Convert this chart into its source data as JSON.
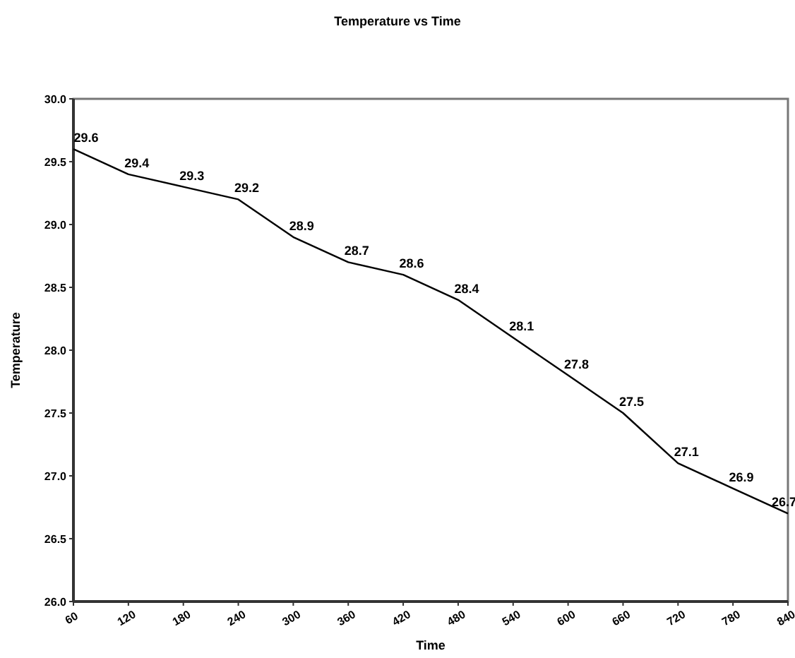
{
  "chart_data": {
    "type": "line",
    "title": "Temperature vs Time",
    "xlabel": "Time",
    "ylabel": "Temperature",
    "x": [
      60,
      120,
      180,
      240,
      300,
      360,
      420,
      480,
      540,
      600,
      660,
      720,
      780,
      840
    ],
    "series": [
      {
        "color": "#000000",
        "values": [
          29.6,
          29.4,
          29.3,
          29.2,
          28.9,
          28.7,
          28.6,
          28.4,
          28.1,
          27.8,
          27.5,
          27.1,
          26.9,
          26.7
        ]
      }
    ],
    "xlim": [
      60,
      840
    ],
    "xticks": [
      60,
      120,
      180,
      240,
      300,
      360,
      420,
      480,
      540,
      600,
      660,
      720,
      780,
      840
    ],
    "ylim": [
      26,
      30
    ],
    "yticks": [
      {
        "value": 26,
        "label": "26.0"
      },
      26.5,
      {
        "value": 27,
        "label": "27.0"
      },
      27.5,
      {
        "value": 28,
        "label": "28.0"
      },
      28.5,
      {
        "value": 29,
        "label": "29.0"
      },
      29.5,
      {
        "value": 30,
        "label": "30.0"
      }
    ],
    "data_labels": true,
    "grid": false,
    "marker": "none",
    "line_style": "solid"
  }
}
